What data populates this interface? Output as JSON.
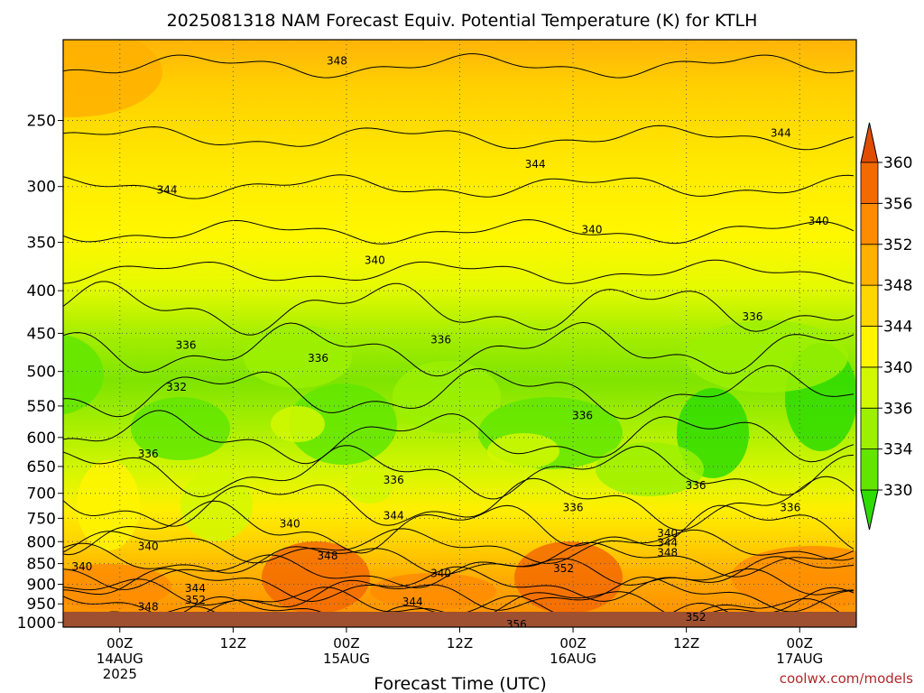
{
  "chart_data": {
    "type": "heatmap",
    "title": "2025081318 NAM Forecast Equiv. Potential Temperature (K) for KTLH",
    "xlabel": "Forecast Time (UTC)",
    "ylabel": "",
    "credit": "coolwx.com/models",
    "x_ticks": [
      {
        "hour": 6,
        "label": "00Z",
        "sub1": "14AUG",
        "sub2": "2025"
      },
      {
        "hour": 18,
        "label": "12Z",
        "sub1": "",
        "sub2": ""
      },
      {
        "hour": 30,
        "label": "00Z",
        "sub1": "15AUG",
        "sub2": ""
      },
      {
        "hour": 42,
        "label": "12Z",
        "sub1": "",
        "sub2": ""
      },
      {
        "hour": 54,
        "label": "00Z",
        "sub1": "16AUG",
        "sub2": ""
      },
      {
        "hour": 66,
        "label": "12Z",
        "sub1": "",
        "sub2": ""
      },
      {
        "hour": 78,
        "label": "00Z",
        "sub1": "17AUG",
        "sub2": ""
      }
    ],
    "x_range": [
      0,
      84
    ],
    "y_pressure_ticks": [
      250,
      300,
      350,
      400,
      450,
      500,
      550,
      600,
      650,
      700,
      750,
      800,
      850,
      900,
      950,
      1000
    ],
    "y_range": [
      200,
      1013
    ],
    "y_scale": "log",
    "colorbar": {
      "levels": [
        330,
        334,
        336,
        340,
        344,
        348,
        352,
        356,
        360
      ],
      "colors": [
        "#2edc00",
        "#62e600",
        "#9cf000",
        "#d2f800",
        "#fff500",
        "#ffd600",
        "#ffb000",
        "#ff8c00",
        "#f36a00",
        "#e04c00"
      ]
    },
    "ground_color": "#9e5030",
    "contour_labels": [
      {
        "text": "348",
        "hour": 29,
        "p": 212
      },
      {
        "text": "344",
        "hour": 76,
        "p": 259
      },
      {
        "text": "344",
        "hour": 50,
        "p": 282
      },
      {
        "text": "344",
        "hour": 11,
        "p": 303
      },
      {
        "text": "340",
        "hour": 80,
        "p": 330
      },
      {
        "text": "340",
        "hour": 56,
        "p": 338
      },
      {
        "text": "340",
        "hour": 33,
        "p": 368
      },
      {
        "text": "336",
        "hour": 73,
        "p": 430
      },
      {
        "text": "336",
        "hour": 13,
        "p": 465
      },
      {
        "text": "336",
        "hour": 40,
        "p": 458
      },
      {
        "text": "336",
        "hour": 27,
        "p": 482
      },
      {
        "text": "332",
        "hour": 12,
        "p": 522
      },
      {
        "text": "336",
        "hour": 55,
        "p": 565
      },
      {
        "text": "336",
        "hour": 9,
        "p": 628
      },
      {
        "text": "336",
        "hour": 35,
        "p": 675
      },
      {
        "text": "336",
        "hour": 67,
        "p": 685
      },
      {
        "text": "336",
        "hour": 54,
        "p": 728
      },
      {
        "text": "336",
        "hour": 77,
        "p": 728
      },
      {
        "text": "344",
        "hour": 35,
        "p": 745
      },
      {
        "text": "340",
        "hour": 24,
        "p": 762
      },
      {
        "text": "340",
        "hour": 64,
        "p": 782
      },
      {
        "text": "344",
        "hour": 64,
        "p": 802
      },
      {
        "text": "340",
        "hour": 9,
        "p": 810
      },
      {
        "text": "348",
        "hour": 28,
        "p": 832
      },
      {
        "text": "348",
        "hour": 64,
        "p": 825
      },
      {
        "text": "340",
        "hour": 2,
        "p": 857
      },
      {
        "text": "352",
        "hour": 53,
        "p": 862
      },
      {
        "text": "340",
        "hour": 40,
        "p": 873
      },
      {
        "text": "344",
        "hour": 14,
        "p": 910
      },
      {
        "text": "352",
        "hour": 14,
        "p": 940
      },
      {
        "text": "344",
        "hour": 37,
        "p": 945
      },
      {
        "text": "348",
        "hour": 9,
        "p": 958
      },
      {
        "text": "352",
        "hour": 67,
        "p": 985
      },
      {
        "text": "356",
        "hour": 48,
        "p": 1006
      }
    ]
  }
}
